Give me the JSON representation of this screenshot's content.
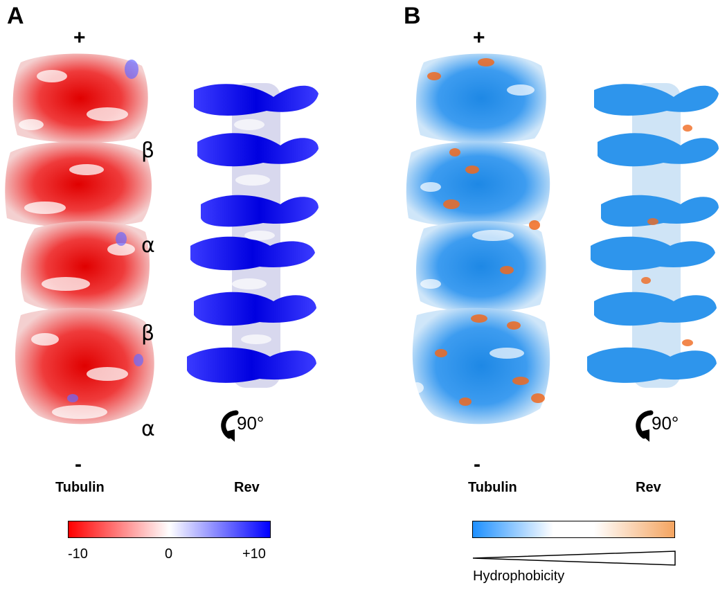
{
  "panels": [
    {
      "letter": "A",
      "plus_label": "+",
      "minus_label": "-",
      "subunits": [
        "β",
        "α",
        "β",
        "α"
      ],
      "tubulin_caption": "Tubulin",
      "rev_caption": "Rev",
      "rotation_label": "90°",
      "scale": {
        "min_label": "-10",
        "mid_label": "0",
        "max_label": "+10",
        "colors": [
          "#ff0000",
          "#ffffff",
          "#0000ff"
        ]
      }
    },
    {
      "letter": "B",
      "plus_label": "+",
      "minus_label": "-",
      "tubulin_caption": "Tubulin",
      "rev_caption": "Rev",
      "rotation_label": "90°",
      "scale": {
        "label": "Hydrophobicity",
        "colors": [
          "#1e90ff",
          "#ffffff",
          "#f4a460"
        ]
      }
    }
  ]
}
